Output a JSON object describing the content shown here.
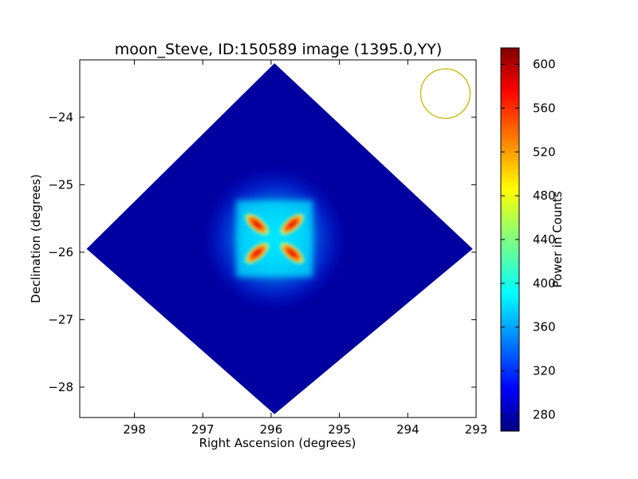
{
  "chart_data": {
    "type": "heatmap",
    "title": "moon_Steve, ID:150589 image (1395.0,YY)",
    "xlabel": "Right Ascension (degrees)",
    "ylabel": "Declination (degrees)",
    "xlim": [
      298.8,
      293.0
    ],
    "ylim": [
      -28.45,
      -23.15
    ],
    "x_ticks": [
      298,
      297,
      296,
      295,
      294,
      293
    ],
    "x_tick_labels": [
      "298",
      "297",
      "296",
      "295",
      "294",
      "293"
    ],
    "y_ticks": [
      -24,
      -25,
      -26,
      -27,
      -28
    ],
    "y_tick_labels": [
      "−24",
      "−25",
      "−26",
      "−27",
      "−28"
    ],
    "colormap": "jet",
    "colorbar": {
      "label": "Power in Counts",
      "range": [
        265,
        615
      ],
      "ticks": [
        280,
        320,
        360,
        400,
        440,
        480,
        520,
        560,
        600
      ],
      "tick_labels": [
        "280",
        "320",
        "360",
        "400",
        "440",
        "480",
        "520",
        "560",
        "600"
      ]
    },
    "image": {
      "footprint": "diamond",
      "footprint_corners_deg": {
        "top": [
          295.95,
          -23.2
        ],
        "right": [
          293.05,
          -25.95
        ],
        "bottom": [
          295.95,
          -28.4
        ],
        "left": [
          298.7,
          -25.95
        ]
      },
      "background_value": 275,
      "source_center": [
        295.95,
        -25.8
      ],
      "source_peak_value": 610,
      "source_shape": "four-lobed cross (X) with red lobes and cyan halo"
    },
    "beam_circle": {
      "center": [
        293.45,
        -23.65
      ],
      "color": "#c8b400"
    },
    "grid": false
  }
}
